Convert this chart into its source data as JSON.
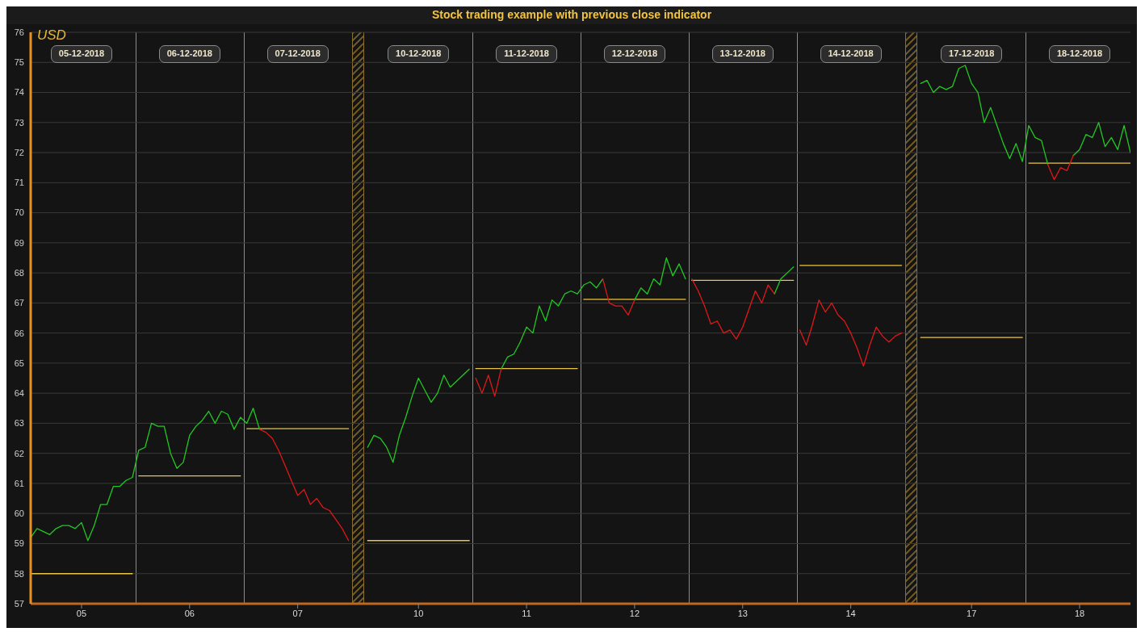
{
  "chart_data": {
    "type": "line",
    "title": "Stock trading example with previous close indicator",
    "annotations": [
      "USD",
      "05-12-2018",
      "06-12-2018",
      "07-12-2018",
      "10-12-2018",
      "11-12-2018",
      "12-12-2018",
      "13-12-2018",
      "14-12-2018",
      "17-12-2018",
      "18-12-2018"
    ],
    "categories": [
      null,
      null,
      null,
      null,
      null,
      null,
      null,
      null,
      "05",
      null,
      null,
      null,
      null,
      null,
      null,
      null,
      null,
      null,
      null,
      null,
      null,
      null,
      null,
      null,
      null,
      "06",
      null,
      null,
      null,
      null,
      null,
      null,
      null,
      null,
      null,
      null,
      null,
      null,
      null,
      null,
      null,
      null,
      "07",
      null,
      null,
      null,
      null,
      null,
      null,
      null,
      null,
      null,
      null,
      null,
      null,
      null,
      null,
      null,
      null,
      null,
      null,
      "10",
      null,
      null,
      null,
      null,
      null,
      null,
      null,
      null,
      null,
      null,
      null,
      null,
      null,
      null,
      null,
      null,
      "11",
      null,
      null,
      null,
      null,
      null,
      null,
      null,
      null,
      null,
      null,
      null,
      null,
      null,
      null,
      null,
      null,
      "12",
      null,
      null,
      null,
      null,
      null,
      null,
      null,
      null,
      null,
      null,
      null,
      null,
      null,
      null,
      null,
      null,
      "13",
      null,
      null,
      null,
      null,
      null,
      null,
      null,
      null,
      null,
      null,
      null,
      null,
      null,
      null,
      null,
      null,
      "14",
      null,
      null,
      null,
      null,
      null,
      null,
      null,
      null,
      null,
      null,
      null,
      null,
      null,
      null,
      null,
      null,
      null,
      null,
      "17",
      null,
      null,
      null,
      null,
      null,
      null,
      null,
      null,
      null,
      null,
      null,
      null,
      null,
      null,
      null,
      null,
      "18",
      null,
      null,
      null,
      null,
      null,
      null,
      null,
      null
    ],
    "ylim": [
      57,
      76
    ],
    "yticks": [
      57,
      58,
      59,
      60,
      61,
      62,
      63,
      64,
      65,
      66,
      67,
      68,
      69,
      70,
      71,
      72,
      73,
      74,
      75,
      76
    ],
    "grid": "y",
    "marker": "none",
    "line_style": "solid",
    "series": [
      {
        "color": "#e8c547",
        "values": [
          58,
          58,
          58,
          58,
          58,
          58,
          58,
          58,
          58,
          58,
          58,
          58,
          58,
          58,
          58,
          58,
          58,
          null,
          null,
          null,
          null,
          null,
          null,
          null,
          null,
          null,
          null,
          null,
          null,
          null,
          null,
          null,
          null,
          null,
          62.82,
          62.82,
          62.82,
          62.82,
          62.82,
          62.82,
          62.82,
          62.82,
          62.82,
          62.82,
          62.82,
          62.82,
          62.82,
          62.82,
          62.82,
          62.82,
          62.82,
          null,
          null,
          null,
          null,
          null,
          null,
          null,
          null,
          null,
          null,
          null,
          null,
          null,
          null,
          null,
          null,
          null,
          null,
          null,
          64.82,
          64.82,
          64.82,
          64.82,
          64.82,
          64.82,
          64.82,
          64.82,
          64.82,
          64.82,
          64.82,
          64.82,
          64.82,
          64.82,
          64.82,
          64.82,
          64.82,
          null,
          null,
          null,
          null,
          null,
          null,
          null,
          null,
          null,
          null,
          null,
          null,
          null,
          null,
          null,
          null,
          null,
          67.75,
          67.75,
          67.75,
          67.75,
          67.75,
          67.75,
          67.75,
          67.75,
          67.75,
          67.75,
          67.75,
          67.75,
          67.75,
          67.75,
          67.75,
          67.75,
          67.75,
          null,
          null,
          null,
          null,
          null,
          null,
          null,
          null,
          null,
          null,
          null,
          null,
          null,
          null,
          null,
          null,
          null,
          null,
          null,
          65.85,
          65.85,
          65.85,
          65.85,
          65.85,
          65.85,
          65.85,
          65.85,
          65.85,
          65.85,
          65.85,
          65.85,
          65.85,
          65.85,
          65.85,
          65.85,
          65.85,
          null,
          null,
          null,
          null,
          null,
          null,
          null,
          null,
          null,
          null,
          null,
          null,
          null,
          null,
          null,
          null,
          null
        ]
      },
      {
        "color": "#e8c547",
        "values": [
          null,
          null,
          null,
          null,
          null,
          null,
          null,
          null,
          null,
          null,
          null,
          null,
          null,
          null,
          null,
          null,
          null,
          61.25,
          61.25,
          61.25,
          61.25,
          61.25,
          61.25,
          61.25,
          61.25,
          61.25,
          61.25,
          61.25,
          61.25,
          61.25,
          61.25,
          61.25,
          61.25,
          61.25,
          null,
          null,
          null,
          null,
          null,
          null,
          null,
          null,
          null,
          null,
          null,
          null,
          null,
          null,
          null,
          null,
          null,
          null,
          null,
          59.1,
          59.1,
          59.1,
          59.1,
          59.1,
          59.1,
          59.1,
          59.1,
          59.1,
          59.1,
          59.1,
          59.1,
          59.1,
          59.1,
          59.1,
          59.1,
          59.1,
          null,
          null,
          null,
          null,
          null,
          null,
          null,
          null,
          null,
          null,
          null,
          null,
          null,
          null,
          null,
          null,
          null,
          67.12,
          67.12,
          67.12,
          67.12,
          67.12,
          67.12,
          67.12,
          67.12,
          67.12,
          67.12,
          67.12,
          67.12,
          67.12,
          67.12,
          67.12,
          67.12,
          67.12,
          null,
          null,
          null,
          null,
          null,
          null,
          null,
          null,
          null,
          null,
          null,
          null,
          null,
          null,
          null,
          null,
          null,
          68.25,
          68.25,
          68.25,
          68.25,
          68.25,
          68.25,
          68.25,
          68.25,
          68.25,
          68.25,
          68.25,
          68.25,
          68.25,
          68.25,
          68.25,
          68.25,
          68.25,
          null,
          null,
          null,
          null,
          null,
          null,
          null,
          null,
          null,
          null,
          null,
          null,
          null,
          null,
          null,
          null,
          null,
          null,
          null,
          71.65,
          71.65,
          71.65,
          71.65,
          71.65,
          71.65,
          71.65,
          71.65,
          71.65,
          71.65,
          71.65,
          71.65,
          71.65,
          71.65,
          71.65,
          71.65,
          71.65
        ]
      },
      {
        "color": "#22c822",
        "values": [
          59.2,
          59.5,
          59.4,
          59.3,
          59.5,
          59.6,
          59.6,
          59.5,
          59.7,
          59.1,
          59.6,
          60.3,
          60.3,
          60.9,
          60.9,
          61.1,
          61.2,
          62.1,
          62.2,
          63.0,
          62.9,
          62.9,
          62.0,
          61.5,
          61.7,
          62.6,
          62.9,
          63.1,
          63.4,
          63.0,
          63.4,
          63.3,
          62.8,
          63.2,
          63.0,
          63.5,
          62.8,
          null,
          null,
          null,
          null,
          null,
          null,
          null,
          null,
          null,
          null,
          null,
          null,
          null,
          null,
          null,
          null,
          62.2,
          62.6,
          62.5,
          62.2,
          61.7,
          62.6,
          63.2,
          63.9,
          64.5,
          64.1,
          63.7,
          64.0,
          64.6,
          64.2,
          64.4,
          64.6,
          64.8,
          null,
          null,
          null,
          null,
          64.8,
          65.2,
          65.3,
          65.7,
          66.2,
          66.0,
          66.9,
          66.4,
          67.1,
          66.9,
          67.3,
          67.4,
          67.3,
          67.6,
          67.7,
          67.5,
          67.8,
          null,
          null,
          null,
          null,
          67.1,
          67.5,
          67.3,
          67.8,
          67.6,
          68.5,
          67.9,
          68.3,
          67.8,
          null,
          null,
          null,
          null,
          null,
          null,
          null,
          null,
          null,
          null,
          null,
          null,
          null,
          67.3,
          67.8,
          68.0,
          68.2,
          null,
          null,
          null,
          null,
          null,
          null,
          null,
          null,
          null,
          null,
          null,
          null,
          null,
          null,
          null,
          null,
          null,
          null,
          null,
          74.3,
          74.4,
          74.0,
          74.2,
          74.1,
          74.2,
          74.8,
          74.9,
          74.3,
          74.0,
          73.0,
          73.5,
          72.9,
          72.3,
          71.8,
          72.3,
          71.7,
          72.9,
          72.5,
          72.4,
          71.6,
          null,
          null,
          null,
          71.9,
          72.1,
          72.6,
          72.5,
          73.0,
          72.2,
          72.5,
          72.1,
          72.9,
          72.0
        ]
      },
      {
        "color": "#e01818",
        "values": [
          null,
          null,
          null,
          null,
          null,
          null,
          null,
          null,
          null,
          null,
          null,
          null,
          null,
          null,
          null,
          null,
          null,
          null,
          null,
          null,
          null,
          null,
          null,
          null,
          null,
          null,
          null,
          null,
          null,
          null,
          null,
          null,
          null,
          null,
          null,
          null,
          62.8,
          62.7,
          62.5,
          62.1,
          61.6,
          61.1,
          60.6,
          60.8,
          60.3,
          60.5,
          60.2,
          60.1,
          59.8,
          59.5,
          59.1,
          null,
          null,
          null,
          null,
          null,
          null,
          null,
          null,
          null,
          null,
          null,
          null,
          null,
          null,
          null,
          null,
          null,
          null,
          null,
          64.5,
          64.0,
          64.6,
          63.9,
          64.8,
          null,
          null,
          null,
          null,
          null,
          null,
          null,
          null,
          null,
          null,
          null,
          null,
          null,
          null,
          null,
          67.8,
          67.0,
          66.9,
          66.9,
          66.6,
          67.1,
          null,
          null,
          null,
          null,
          null,
          null,
          null,
          null,
          67.8,
          67.4,
          66.9,
          66.3,
          66.4,
          66.0,
          66.1,
          65.8,
          66.2,
          66.8,
          67.4,
          67.0,
          67.6,
          67.3,
          null,
          null,
          null,
          66.1,
          65.6,
          66.3,
          67.1,
          66.7,
          67.0,
          66.6,
          66.4,
          66.0,
          65.5,
          64.9,
          65.6,
          66.2,
          65.9,
          65.7,
          65.9,
          66.0,
          null,
          null,
          null,
          null,
          null,
          null,
          null,
          null,
          null,
          null,
          null,
          null,
          null,
          null,
          null,
          null,
          null,
          null,
          null,
          null,
          null,
          null,
          71.6,
          71.1,
          71.5,
          71.4,
          71.9,
          null,
          null,
          null,
          null,
          null,
          null,
          null,
          null,
          null
        ]
      }
    ]
  }
}
